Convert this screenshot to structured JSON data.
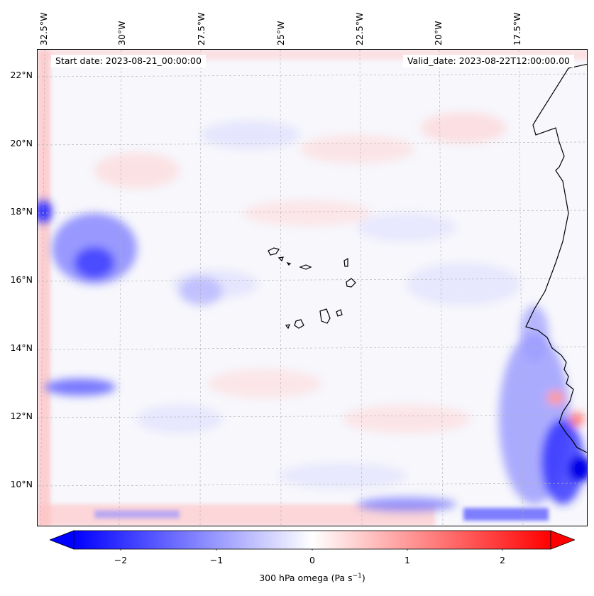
{
  "map": {
    "start_date": "Start date: 2023-08-21_00:00:00",
    "valid_date": "Valid_date: 2023-08-22T12:00:00.00",
    "longitude_labels": [
      "32.5°W",
      "30°W",
      "27.5°W",
      "25°W",
      "22.5°W",
      "20°W",
      "17.5°W"
    ],
    "latitude_labels": [
      "22°N",
      "20°N",
      "18°N",
      "16°N",
      "14°N",
      "12°N",
      "10°N"
    ],
    "extent": {
      "lon_min": -33.0,
      "lon_max": -15.8,
      "lat_min": 8.9,
      "lat_max": 22.8
    },
    "colormap": "bwr",
    "colors": {
      "negative": "#0000ff",
      "zero": "#ffffff",
      "positive": "#ff0000",
      "coastline": "#000000"
    }
  },
  "colorbar": {
    "range": [
      -2.7,
      2.7
    ],
    "ticks": [
      "−2",
      "−1",
      "0",
      "1",
      "2"
    ],
    "tick_values": [
      -2,
      -1,
      0,
      1,
      2
    ],
    "extend": "both",
    "label": "300 hPa omega (Pa s",
    "label_superscript": "−1",
    "label_suffix": ")"
  }
}
